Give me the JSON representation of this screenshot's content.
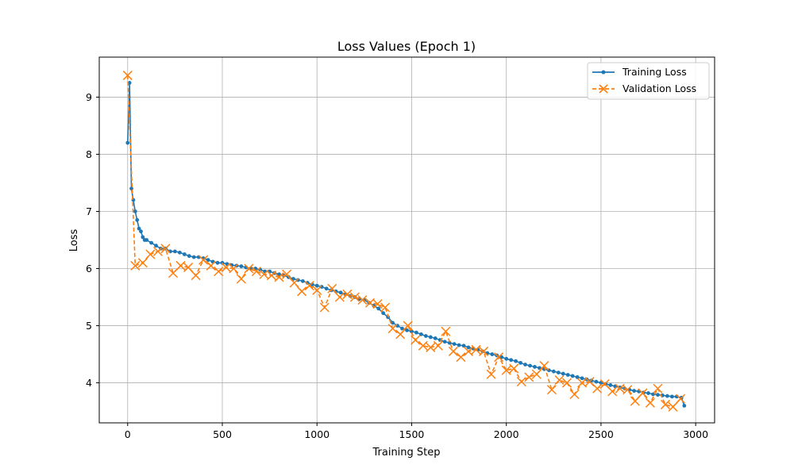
{
  "chart_data": {
    "type": "line",
    "title": "Loss Values (Epoch 1)",
    "xlabel": "Training Step",
    "ylabel": "Loss",
    "xlim": [
      -150,
      3100
    ],
    "ylim": [
      3.3,
      9.7
    ],
    "xticks": [
      0,
      500,
      1000,
      1500,
      2000,
      2500,
      3000
    ],
    "yticks": [
      4,
      5,
      6,
      7,
      8,
      9
    ],
    "grid": true,
    "legend_position": "top-right",
    "series": [
      {
        "name": "Training Loss",
        "color": "#1f77b4",
        "style": "solid line with dot markers",
        "x": [
          0,
          10,
          20,
          30,
          40,
          50,
          60,
          70,
          80,
          90,
          100,
          125,
          150,
          175,
          200,
          225,
          250,
          275,
          300,
          325,
          350,
          375,
          400,
          425,
          450,
          475,
          500,
          525,
          550,
          575,
          600,
          625,
          650,
          675,
          700,
          725,
          750,
          775,
          800,
          825,
          850,
          875,
          900,
          925,
          950,
          975,
          1000,
          1025,
          1050,
          1075,
          1100,
          1125,
          1150,
          1175,
          1200,
          1225,
          1250,
          1275,
          1300,
          1325,
          1350,
          1375,
          1400,
          1425,
          1450,
          1475,
          1500,
          1525,
          1550,
          1575,
          1600,
          1625,
          1650,
          1675,
          1700,
          1725,
          1750,
          1775,
          1800,
          1825,
          1850,
          1875,
          1900,
          1925,
          1950,
          1975,
          2000,
          2025,
          2050,
          2075,
          2100,
          2125,
          2150,
          2175,
          2200,
          2225,
          2250,
          2275,
          2300,
          2325,
          2350,
          2375,
          2400,
          2425,
          2450,
          2475,
          2500,
          2525,
          2550,
          2575,
          2600,
          2625,
          2650,
          2675,
          2700,
          2725,
          2750,
          2775,
          2800,
          2825,
          2850,
          2875,
          2900,
          2925,
          2940
        ],
        "values": [
          8.2,
          9.25,
          7.4,
          7.2,
          7.0,
          6.85,
          6.7,
          6.65,
          6.55,
          6.5,
          6.5,
          6.45,
          6.4,
          6.35,
          6.35,
          6.3,
          6.3,
          6.28,
          6.25,
          6.22,
          6.2,
          6.2,
          6.18,
          6.15,
          6.12,
          6.1,
          6.1,
          6.08,
          6.06,
          6.05,
          6.04,
          6.02,
          6.0,
          6.0,
          5.98,
          5.95,
          5.95,
          5.92,
          5.9,
          5.88,
          5.85,
          5.82,
          5.8,
          5.78,
          5.75,
          5.72,
          5.7,
          5.68,
          5.65,
          5.62,
          5.6,
          5.58,
          5.55,
          5.52,
          5.5,
          5.47,
          5.45,
          5.4,
          5.35,
          5.3,
          5.22,
          5.15,
          5.05,
          5.0,
          4.95,
          4.92,
          4.9,
          4.88,
          4.85,
          4.82,
          4.8,
          4.78,
          4.75,
          4.72,
          4.7,
          4.68,
          4.66,
          4.65,
          4.62,
          4.6,
          4.58,
          4.55,
          4.52,
          4.5,
          4.48,
          4.45,
          4.42,
          4.4,
          4.38,
          4.35,
          4.32,
          4.3,
          4.28,
          4.26,
          4.24,
          4.22,
          4.2,
          4.18,
          4.16,
          4.14,
          4.12,
          4.1,
          4.08,
          4.06,
          4.04,
          4.02,
          4.0,
          3.98,
          3.96,
          3.94,
          3.92,
          3.9,
          3.88,
          3.86,
          3.85,
          3.83,
          3.82,
          3.8,
          3.79,
          3.78,
          3.77,
          3.76,
          3.76,
          3.74,
          3.6
        ]
      },
      {
        "name": "Validation Loss",
        "color": "#ff7f0e",
        "style": "dashed line with x markers",
        "x": [
          0,
          40,
          80,
          120,
          160,
          200,
          240,
          280,
          320,
          360,
          400,
          440,
          480,
          520,
          560,
          600,
          640,
          680,
          720,
          760,
          800,
          840,
          880,
          920,
          960,
          1000,
          1040,
          1080,
          1120,
          1160,
          1200,
          1240,
          1280,
          1320,
          1360,
          1400,
          1440,
          1480,
          1520,
          1560,
          1600,
          1640,
          1680,
          1720,
          1760,
          1800,
          1840,
          1880,
          1920,
          1960,
          2000,
          2040,
          2080,
          2120,
          2160,
          2200,
          2240,
          2280,
          2320,
          2360,
          2400,
          2440,
          2480,
          2520,
          2560,
          2600,
          2640,
          2680,
          2720,
          2760,
          2800,
          2840,
          2880,
          2920
        ],
        "values": [
          9.38,
          6.05,
          6.1,
          6.25,
          6.3,
          6.35,
          5.92,
          6.05,
          6.02,
          5.88,
          6.15,
          6.05,
          5.95,
          6.02,
          6.0,
          5.82,
          6.0,
          5.95,
          5.9,
          5.88,
          5.85,
          5.9,
          5.75,
          5.6,
          5.7,
          5.62,
          5.32,
          5.65,
          5.5,
          5.55,
          5.5,
          5.45,
          5.4,
          5.38,
          5.32,
          4.95,
          4.85,
          5.0,
          4.75,
          4.65,
          4.62,
          4.65,
          4.9,
          4.55,
          4.45,
          4.55,
          4.58,
          4.55,
          4.15,
          4.45,
          4.22,
          4.25,
          4.02,
          4.1,
          4.15,
          4.3,
          3.88,
          4.05,
          4.0,
          3.8,
          4.0,
          4.02,
          3.9,
          3.98,
          3.85,
          3.9,
          3.88,
          3.68,
          3.82,
          3.65,
          3.9,
          3.62,
          3.58,
          3.72
        ]
      }
    ]
  }
}
